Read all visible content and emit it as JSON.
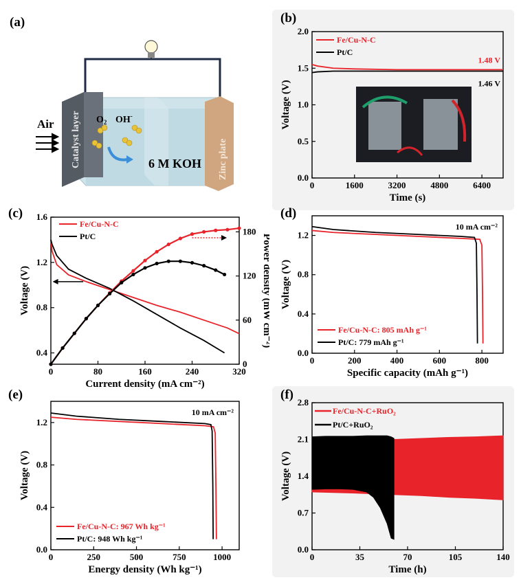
{
  "panels": {
    "a": {
      "label": "(a)",
      "air": "Air",
      "catalyst": "Catalyst layer",
      "o2": "O",
      "o2_sub": "2",
      "oh": "OH",
      "oh_sup": "-",
      "koh": "6 M KOH",
      "zinc": "Zinc plate"
    }
  },
  "chart_data": [
    {
      "id": "b",
      "label": "(b)",
      "type": "line",
      "xlabel": "Time (s)",
      "ylabel": "Voltage (V)",
      "xlim": [
        0,
        7200
      ],
      "ylim": [
        0,
        2.0
      ],
      "xticks": [
        0,
        1600,
        3200,
        4800,
        6400
      ],
      "yticks": [
        0.0,
        0.5,
        1.0,
        1.5,
        2.0
      ],
      "ytick_labels": [
        "0.0",
        "0.5",
        "1.0",
        "1.5",
        "2.0"
      ],
      "annotations": [
        "1.48 V",
        "1.46 V"
      ],
      "inset": "photo of assembled zinc-air batteries",
      "series": [
        {
          "name": "Fe/Cu-N-C",
          "color": "#e8232a",
          "x": [
            0,
            200,
            800,
            1600,
            3200,
            4800,
            6400,
            7200
          ],
          "y": [
            1.55,
            1.53,
            1.5,
            1.49,
            1.48,
            1.48,
            1.48,
            1.48
          ]
        },
        {
          "name": "Pt/C",
          "color": "#000000",
          "x": [
            0,
            200,
            800,
            1600,
            3200,
            4800,
            6400,
            7200
          ],
          "y": [
            1.44,
            1.45,
            1.46,
            1.46,
            1.46,
            1.46,
            1.46,
            1.46
          ]
        }
      ]
    },
    {
      "id": "c",
      "label": "(c)",
      "type": "line",
      "xlabel": "Current density (mA cm⁻²)",
      "ylabel": "Voltage (V)",
      "y2label": "Power density (mW cm⁻²)",
      "xlim": [
        0,
        320
      ],
      "ylim": [
        0.3,
        1.6
      ],
      "y2lim": [
        0,
        200
      ],
      "xticks": [
        0,
        80,
        160,
        240,
        320
      ],
      "yticks": [
        0.4,
        0.8,
        1.2,
        1.6
      ],
      "ytick_labels": [
        "0.4",
        "0.8",
        "1.2",
        "1.6"
      ],
      "y2ticks": [
        0,
        60,
        120,
        180
      ],
      "series": [
        {
          "name": "Fe/Cu-N-C",
          "color": "#e8232a",
          "kind": "voltage",
          "x": [
            0,
            2,
            10,
            30,
            60,
            100,
            140,
            180,
            220,
            260,
            300,
            320
          ],
          "y": [
            1.4,
            1.3,
            1.18,
            1.09,
            1.03,
            0.96,
            0.89,
            0.82,
            0.76,
            0.69,
            0.62,
            0.57
          ]
        },
        {
          "name": "Pt/C",
          "color": "#000000",
          "kind": "voltage",
          "x": [
            0,
            2,
            10,
            30,
            60,
            100,
            140,
            180,
            220,
            260,
            295
          ],
          "y": [
            1.4,
            1.36,
            1.26,
            1.14,
            1.06,
            0.97,
            0.86,
            0.74,
            0.62,
            0.51,
            0.4
          ]
        },
        {
          "name": "Fe/Cu-N-C power",
          "color": "#e8232a",
          "kind": "power",
          "x": [
            0,
            20,
            40,
            60,
            80,
            100,
            120,
            140,
            160,
            180,
            200,
            220,
            240,
            260,
            280,
            300,
            320
          ],
          "y": [
            0,
            22,
            42,
            62,
            80,
            97,
            113,
            127,
            141,
            153,
            163,
            171,
            177,
            180,
            182,
            183,
            185
          ]
        },
        {
          "name": "Pt/C power",
          "color": "#000000",
          "kind": "power",
          "x": [
            0,
            20,
            40,
            60,
            80,
            100,
            120,
            140,
            160,
            180,
            200,
            220,
            240,
            260,
            280,
            295
          ],
          "y": [
            0,
            22,
            42,
            62,
            80,
            96,
            111,
            122,
            131,
            137,
            140,
            140,
            138,
            134,
            128,
            122
          ]
        }
      ]
    },
    {
      "id": "d",
      "label": "(d)",
      "type": "line",
      "xlabel": "Specific capacity (mAh g⁻¹)",
      "ylabel": "Voltage (V)",
      "xlim": [
        0,
        900
      ],
      "ylim": [
        0,
        1.4
      ],
      "xticks": [
        0,
        200,
        400,
        600,
        800
      ],
      "yticks": [
        0.0,
        0.4,
        0.8,
        1.2
      ],
      "ytick_labels": [
        "0.0",
        "0.4",
        "0.8",
        "1.2"
      ],
      "annotation": "10 mA cm⁻²",
      "series": [
        {
          "name": "Fe/Cu-N-C: 805 mAh g⁻¹",
          "color": "#e8232a",
          "x": [
            0,
            100,
            300,
            500,
            700,
            790,
            800,
            803,
            805
          ],
          "y": [
            1.25,
            1.23,
            1.21,
            1.19,
            1.17,
            1.16,
            1.1,
            0.6,
            0.1
          ]
        },
        {
          "name": "Pt/C: 779 mAh g⁻¹",
          "color": "#000000",
          "x": [
            0,
            100,
            300,
            500,
            700,
            765,
            774,
            777,
            779
          ],
          "y": [
            1.29,
            1.26,
            1.23,
            1.21,
            1.19,
            1.18,
            1.12,
            0.6,
            0.1
          ]
        }
      ]
    },
    {
      "id": "e",
      "label": "(e)",
      "type": "line",
      "xlabel": "Energy density (Wh kg⁻¹)",
      "ylabel": "Voltage (V)",
      "xlim": [
        0,
        1100
      ],
      "ylim": [
        0,
        1.4
      ],
      "xticks": [
        0,
        250,
        500,
        750,
        1000
      ],
      "yticks": [
        0.0,
        0.4,
        0.8,
        1.2
      ],
      "ytick_labels": [
        "0.0",
        "0.4",
        "0.8",
        "1.2"
      ],
      "annotation": "10 mA cm⁻²",
      "series": [
        {
          "name": "Fe/Cu-N-C: 967 Wh kg⁻¹",
          "color": "#e8232a",
          "x": [
            0,
            150,
            400,
            650,
            900,
            950,
            960,
            964,
            967
          ],
          "y": [
            1.25,
            1.23,
            1.21,
            1.19,
            1.17,
            1.16,
            1.1,
            0.6,
            0.1
          ]
        },
        {
          "name": "Pt/C: 948 Wh kg⁻¹",
          "color": "#000000",
          "x": [
            0,
            150,
            400,
            650,
            900,
            935,
            942,
            946,
            948
          ],
          "y": [
            1.29,
            1.26,
            1.23,
            1.21,
            1.19,
            1.18,
            1.12,
            0.6,
            0.1
          ]
        }
      ]
    },
    {
      "id": "f",
      "label": "(f)",
      "type": "area",
      "xlabel": "Time (h)",
      "ylabel": "Voltage (V)",
      "xlim": [
        0,
        140
      ],
      "ylim": [
        0,
        2.8
      ],
      "xticks": [
        0,
        35,
        70,
        105,
        140
      ],
      "yticks": [
        0.0,
        0.7,
        1.4,
        2.1,
        2.8
      ],
      "ytick_labels": [
        "0.0",
        "0.7",
        "1.4",
        "2.1",
        "2.8"
      ],
      "series": [
        {
          "name": "Fe/Cu-N-C+RuO₂",
          "color": "#e8232a",
          "x": [
            0,
            30,
            60,
            80,
            100,
            120,
            140
          ],
          "upper": [
            2.05,
            2.07,
            2.1,
            2.12,
            2.14,
            2.15,
            2.17
          ],
          "lower": [
            1.1,
            1.08,
            1.05,
            1.03,
            1.0,
            0.98,
            0.95
          ]
        },
        {
          "name": "Pt/C+RuO₂",
          "color": "#000000",
          "x": [
            0,
            10,
            20,
            30,
            40,
            45,
            50,
            55,
            58,
            60
          ],
          "upper": [
            2.15,
            2.16,
            2.16,
            2.16,
            2.17,
            2.17,
            2.17,
            2.17,
            2.15,
            2.12
          ],
          "lower": [
            1.15,
            1.16,
            1.16,
            1.15,
            1.1,
            1.0,
            0.8,
            0.5,
            0.22,
            0.2
          ]
        }
      ]
    }
  ]
}
